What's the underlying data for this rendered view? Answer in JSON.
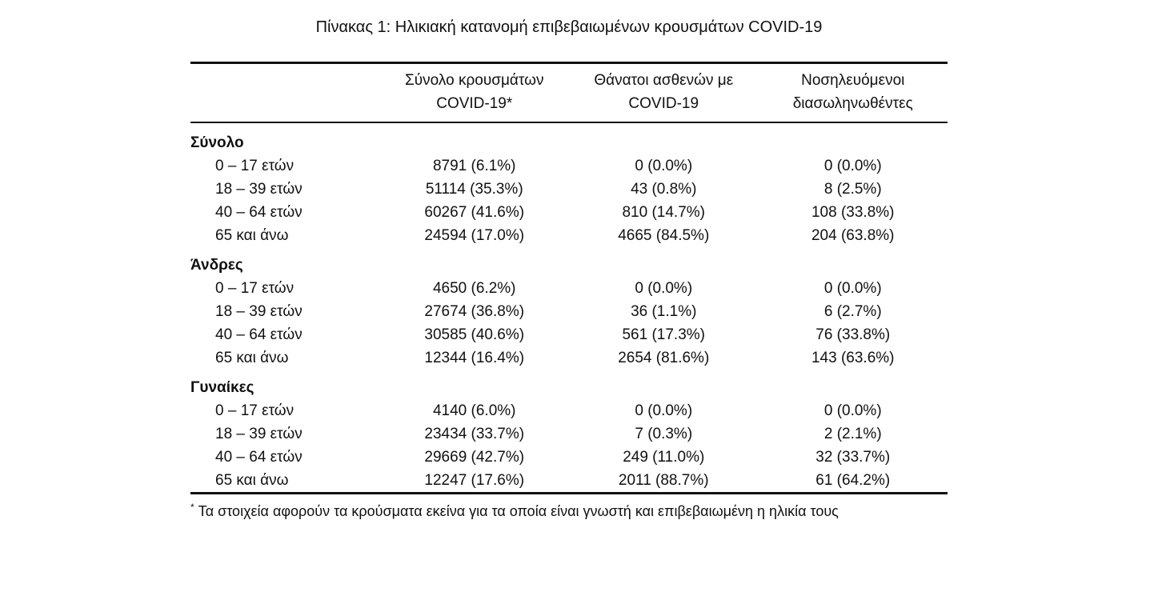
{
  "title": "Πίνακας 1: Ηλικιακή κατανομή επιβεβαιωμένων κρουσμάτων COVID-19",
  "table": {
    "columns": [
      {
        "line1": "",
        "line2": ""
      },
      {
        "line1": "Σύνολο κρουσμάτων",
        "line2": "COVID-19*"
      },
      {
        "line1": "Θάνατοι ασθενών με",
        "line2": "COVID-19"
      },
      {
        "line1": "Νοσηλευόμενοι",
        "line2": "διασωληνωθέντες"
      }
    ],
    "sections": [
      {
        "label": "Σύνολο",
        "rows": [
          {
            "age": "0 – 17 ετών",
            "cases": "8791 (6.1%)",
            "deaths": "0 (0.0%)",
            "intubated": "0 (0.0%)"
          },
          {
            "age": "18 – 39 ετών",
            "cases": "51114 (35.3%)",
            "deaths": "43 (0.8%)",
            "intubated": "8 (2.5%)"
          },
          {
            "age": "40 – 64 ετών",
            "cases": "60267 (41.6%)",
            "deaths": "810 (14.7%)",
            "intubated": "108 (33.8%)"
          },
          {
            "age": "65 και άνω",
            "cases": "24594 (17.0%)",
            "deaths": "4665 (84.5%)",
            "intubated": "204 (63.8%)"
          }
        ]
      },
      {
        "label": "Άνδρες",
        "rows": [
          {
            "age": "0 – 17 ετών",
            "cases": "4650 (6.2%)",
            "deaths": "0 (0.0%)",
            "intubated": "0 (0.0%)"
          },
          {
            "age": "18 – 39 ετών",
            "cases": "27674 (36.8%)",
            "deaths": "36 (1.1%)",
            "intubated": "6 (2.7%)"
          },
          {
            "age": "40 – 64 ετών",
            "cases": "30585 (40.6%)",
            "deaths": "561 (17.3%)",
            "intubated": "76 (33.8%)"
          },
          {
            "age": "65 και άνω",
            "cases": "12344 (16.4%)",
            "deaths": "2654 (81.6%)",
            "intubated": "143 (63.6%)"
          }
        ]
      },
      {
        "label": "Γυναίκες",
        "rows": [
          {
            "age": "0 – 17 ετών",
            "cases": "4140 (6.0%)",
            "deaths": "0 (0.0%)",
            "intubated": "0 (0.0%)"
          },
          {
            "age": "18 – 39 ετών",
            "cases": "23434 (33.7%)",
            "deaths": "7 (0.3%)",
            "intubated": "2 (2.1%)"
          },
          {
            "age": "40 – 64 ετών",
            "cases": "29669 (42.7%)",
            "deaths": "249 (11.0%)",
            "intubated": "32 (33.7%)"
          },
          {
            "age": "65 και άνω",
            "cases": "12247 (17.6%)",
            "deaths": "2011 (88.7%)",
            "intubated": "61 (64.2%)"
          }
        ]
      }
    ]
  },
  "footnote": {
    "marker": "*",
    "text": "Τα στοιχεία αφορούν τα κρούσματα εκείνα για τα οποία είναι γνωστή και επιβεβαιωμένη η ηλικία τους"
  },
  "colors": {
    "text": "#111111",
    "background": "#ffffff",
    "rule": "#111111"
  }
}
